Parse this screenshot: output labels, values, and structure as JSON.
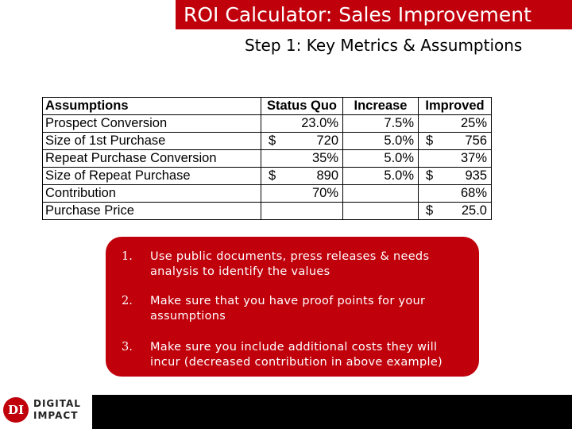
{
  "slide": {
    "title": "ROI Calculator: Sales Improvement",
    "subtitle": "Step 1: Key Metrics & Assumptions"
  },
  "table": {
    "headers": [
      "Assumptions",
      "Status Quo",
      "Increase",
      "Improved"
    ],
    "rows": [
      {
        "label": "Prospect Conversion",
        "status_quo_cur": "",
        "status_quo": "23.0%",
        "increase": "7.5%",
        "improved_cur": "",
        "improved": "25%"
      },
      {
        "label": "Size of 1st Purchase",
        "status_quo_cur": "$",
        "status_quo": "720",
        "increase": "5.0%",
        "improved_cur": "$",
        "improved": "756"
      },
      {
        "label": "Repeat Purchase Conversion",
        "status_quo_cur": "",
        "status_quo": "35%",
        "increase": "5.0%",
        "improved_cur": "",
        "improved": "37%"
      },
      {
        "label": "Size of Repeat Purchase",
        "status_quo_cur": "$",
        "status_quo": "890",
        "increase": "5.0%",
        "improved_cur": "$",
        "improved": "935"
      },
      {
        "label": "Contribution",
        "status_quo_cur": "",
        "status_quo": "70%",
        "increase": "",
        "improved_cur": "",
        "improved": "68%"
      },
      {
        "label": "Purchase Price",
        "status_quo_cur": "",
        "status_quo": "",
        "increase": "",
        "improved_cur": "$",
        "improved": "25.0"
      }
    ]
  },
  "notes": [
    {
      "number": "1.",
      "text": "Use public documents, press releases & needs analysis to identify the values"
    },
    {
      "number": "2.",
      "text": "Make sure that you have proof points for your assumptions"
    },
    {
      "number": "3.",
      "text": "Make sure you include additional costs they will incur (decreased contribution in above example)"
    }
  ],
  "logo": {
    "mark": "DI",
    "line1": "DIGITAL",
    "line2": "IMPACT"
  },
  "colors": {
    "accent": "#c0000b",
    "footer": "#000000"
  }
}
